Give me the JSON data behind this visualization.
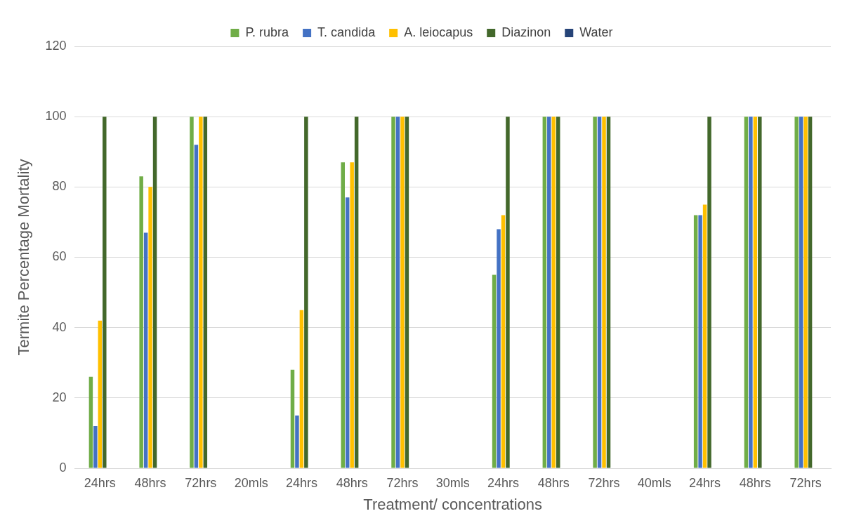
{
  "chart_data": {
    "type": "bar",
    "xlabel": "Treatment/ concentrations",
    "ylabel": "Termite Percentage Mortality",
    "categories": [
      "24hrs",
      "48hrs",
      "72hrs",
      "20mls",
      "24hrs",
      "48hrs",
      "72hrs",
      "30mls",
      "24hrs",
      "48hrs",
      "72hrs",
      "40mls",
      "24hrs",
      "48hrs",
      "72hrs"
    ],
    "series": [
      {
        "name": "P. rubra",
        "color": "#70ad47",
        "values": [
          26,
          83,
          100,
          null,
          28,
          87,
          100,
          null,
          55,
          100,
          100,
          null,
          72,
          100,
          100
        ]
      },
      {
        "name": "T. candida",
        "color": "#4472c4",
        "values": [
          12,
          67,
          92,
          null,
          15,
          77,
          100,
          null,
          68,
          100,
          100,
          null,
          72,
          100,
          100
        ]
      },
      {
        "name": "A. leiocapus",
        "color": "#ffc000",
        "values": [
          42,
          80,
          100,
          null,
          45,
          87,
          100,
          null,
          72,
          100,
          100,
          null,
          75,
          100,
          100
        ]
      },
      {
        "name": "Diazinon",
        "color": "#43682b",
        "values": [
          100,
          100,
          100,
          null,
          100,
          100,
          100,
          null,
          100,
          100,
          100,
          null,
          100,
          100,
          100
        ]
      },
      {
        "name": "Water",
        "color": "#264478",
        "values": [
          0,
          0,
          0,
          null,
          0,
          0,
          0,
          null,
          0,
          0,
          0,
          null,
          0,
          0,
          0
        ]
      }
    ],
    "ylim": [
      0,
      120
    ],
    "yticks": [
      0,
      20,
      40,
      60,
      80,
      100,
      120
    ],
    "grid": "y",
    "legend": "top"
  }
}
